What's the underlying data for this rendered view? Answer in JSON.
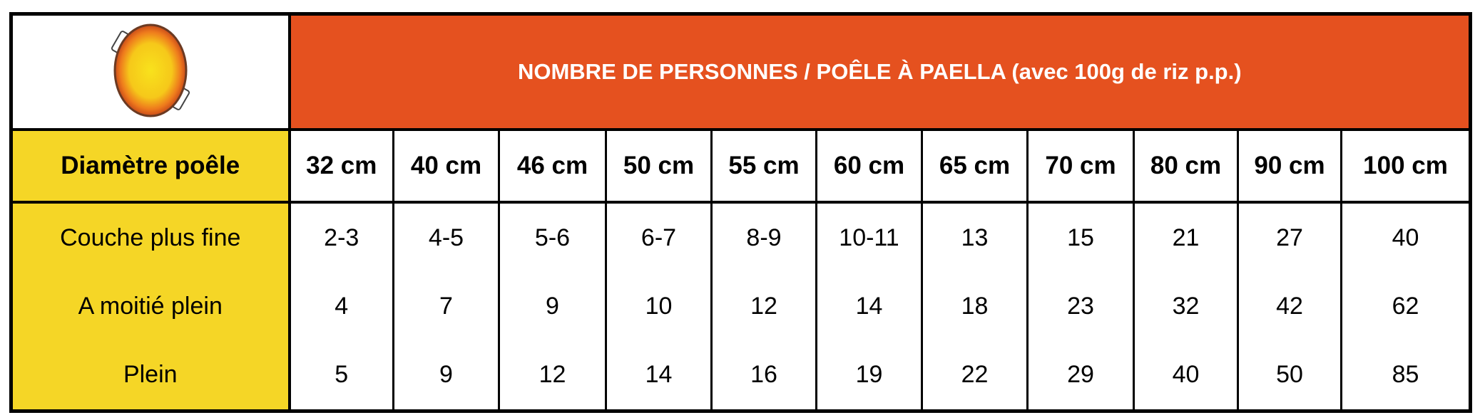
{
  "header": {
    "title": "NOMBRE DE PERSONNES / POÊLE À PAELLA (avec 100g de riz p.p.)",
    "logo_icon": "paella-pan-icon"
  },
  "colors": {
    "header_bg": "#e5511f",
    "row_header_bg": "#f5d626"
  },
  "table": {
    "row_header_label": "Diamètre poêle",
    "diameters": [
      "32 cm",
      "40 cm",
      "46 cm",
      "50 cm",
      "55 cm",
      "60 cm",
      "65 cm",
      "70 cm",
      "80 cm",
      "90 cm",
      "100 cm"
    ],
    "rows": [
      {
        "label": "Couche plus fine",
        "values": [
          "2-3",
          "4-5",
          "5-6",
          "6-7",
          "8-9",
          "10-11",
          "13",
          "15",
          "21",
          "27",
          "40"
        ]
      },
      {
        "label": "A moitié plein",
        "values": [
          "4",
          "7",
          "9",
          "10",
          "12",
          "14",
          "18",
          "23",
          "32",
          "42",
          "62"
        ]
      },
      {
        "label": "Plein",
        "values": [
          "5",
          "9",
          "12",
          "14",
          "16",
          "19",
          "22",
          "29",
          "40",
          "50",
          "85"
        ]
      }
    ]
  }
}
